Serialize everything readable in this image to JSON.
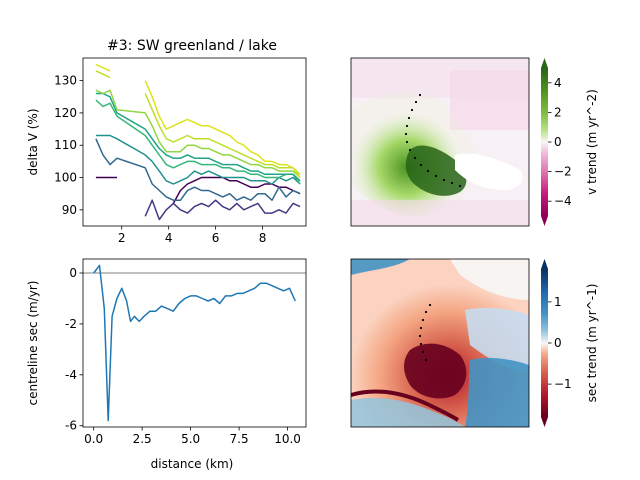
{
  "chart_data": [
    {
      "type": "line",
      "title": "#3: SW greenland / lake",
      "ylabel": "delta V (%)",
      "xlabel": "",
      "xlim": [
        0.35,
        9.85
      ],
      "ylim": [
        85,
        137
      ],
      "xticks": [
        2,
        4,
        6,
        8
      ],
      "yticks": [
        90,
        100,
        110,
        120,
        130
      ],
      "x": [
        0.9,
        1.2,
        1.5,
        1.8,
        3.0,
        3.3,
        3.6,
        3.9,
        4.2,
        4.5,
        4.8,
        5.1,
        5.4,
        5.7,
        6.0,
        6.3,
        6.6,
        6.9,
        7.2,
        7.5,
        7.8,
        8.1,
        8.4,
        8.7,
        9.0,
        9.3,
        9.6
      ],
      "series": [
        {
          "color": "#440154",
          "values": [
            100,
            100,
            100,
            100,
            null,
            null,
            null,
            null,
            92,
            96,
            98,
            99,
            100,
            100,
            100,
            100,
            99,
            99,
            98,
            97,
            97,
            98,
            98,
            97,
            97,
            96,
            95
          ]
        },
        {
          "color": "#443a83",
          "values": [
            null,
            null,
            null,
            null,
            88,
            93,
            87,
            90,
            92,
            90,
            89,
            91,
            92,
            91,
            93,
            91,
            90,
            92,
            90,
            91,
            92,
            89,
            89,
            90,
            89,
            92,
            91
          ]
        },
        {
          "color": "#31688e",
          "values": [
            112,
            107,
            104,
            106,
            103,
            98,
            96,
            94,
            93,
            93,
            96,
            97,
            96,
            96,
            95,
            94,
            95,
            93,
            94,
            93,
            95,
            95,
            93,
            97,
            94,
            96,
            95
          ]
        },
        {
          "color": "#21918c",
          "values": [
            113,
            113,
            113,
            112,
            107,
            105,
            102,
            99,
            98,
            99,
            100,
            102,
            101,
            102,
            101,
            100,
            100,
            100,
            100,
            99,
            99,
            99,
            98,
            100,
            99,
            100,
            98
          ]
        },
        {
          "color": "#35b779",
          "values": [
            124,
            122,
            123,
            119,
            113,
            110,
            107,
            104,
            103,
            104,
            105,
            105,
            104,
            104,
            104,
            103,
            103,
            102,
            102,
            101,
            101,
            100,
            100,
            100,
            101,
            101,
            98
          ]
        },
        {
          "color": "#20a486",
          "values": [
            126,
            126,
            125,
            120,
            115,
            112,
            109,
            107,
            106,
            106,
            107,
            106,
            106,
            106,
            105,
            104,
            104,
            104,
            103,
            102,
            102,
            101,
            101,
            101,
            101,
            101,
            99
          ]
        },
        {
          "color": "#90d743",
          "values": [
            127,
            126,
            127,
            121,
            120,
            116,
            111,
            108,
            108,
            108,
            110,
            110,
            109,
            109,
            108,
            107,
            107,
            106,
            105,
            104,
            104,
            103,
            103,
            102,
            102,
            102,
            100
          ]
        },
        {
          "color": "#bddf26",
          "values": [
            133,
            132,
            131,
            null,
            126,
            121,
            116,
            112,
            111,
            112,
            113,
            112,
            112,
            112,
            111,
            110,
            109,
            108,
            107,
            106,
            105,
            104,
            104,
            103,
            103,
            103,
            101
          ]
        },
        {
          "color": "#dde318",
          "values": [
            135,
            134,
            133,
            null,
            130,
            125,
            119,
            115,
            116,
            117,
            118,
            117,
            116,
            116,
            115,
            114,
            113,
            111,
            110,
            108,
            107,
            105,
            105,
            104,
            104,
            103,
            100
          ]
        }
      ]
    },
    {
      "type": "line",
      "title": "",
      "xlabel": "distance (km)",
      "ylabel": "centreline sec (m/yr)",
      "xlim": [
        -0.55,
        10.95
      ],
      "ylim": [
        -6.05,
        0.55
      ],
      "xticks": [
        0.0,
        2.5,
        5.0,
        7.5,
        10.0
      ],
      "xtick_labels": [
        "0.0",
        "2.5",
        "5.0",
        "7.5",
        "10.0"
      ],
      "yticks": [
        0,
        -2,
        -4,
        -6
      ],
      "zero_line": true,
      "series": [
        {
          "color": "#1f77b4",
          "x": [
            0.0,
            0.3,
            0.55,
            0.75,
            0.95,
            1.2,
            1.45,
            1.7,
            1.9,
            2.1,
            2.35,
            2.6,
            2.9,
            3.2,
            3.5,
            3.8,
            4.1,
            4.4,
            4.7,
            5.0,
            5.3,
            5.6,
            5.9,
            6.2,
            6.5,
            6.8,
            7.1,
            7.4,
            7.7,
            8.0,
            8.3,
            8.6,
            8.9,
            9.2,
            9.5,
            9.8,
            10.1,
            10.4
          ],
          "values": [
            0.0,
            0.3,
            -1.4,
            -5.8,
            -1.7,
            -1.0,
            -0.6,
            -1.1,
            -1.9,
            -1.7,
            -1.9,
            -1.7,
            -1.5,
            -1.5,
            -1.3,
            -1.4,
            -1.5,
            -1.2,
            -1.0,
            -0.9,
            -0.9,
            -1.0,
            -1.1,
            -1.0,
            -1.2,
            -0.9,
            -0.9,
            -0.8,
            -0.8,
            -0.7,
            -0.6,
            -0.4,
            -0.4,
            -0.5,
            -0.6,
            -0.7,
            -0.6,
            -1.1
          ]
        }
      ]
    },
    {
      "type": "heatmap",
      "title": "",
      "colorbar_label": "v trend (m yr^-2)",
      "colormap": "PiYG",
      "clim": [
        -5,
        5
      ],
      "colorbar_ticks": [
        4,
        2,
        0,
        -2,
        -4
      ],
      "centreline": "dotted black"
    },
    {
      "type": "heatmap",
      "title": "",
      "colorbar_label": "sec trend (m yr^-1)",
      "colormap": "RdBu",
      "clim": [
        -1.8,
        1.8
      ],
      "colorbar_ticks": [
        1,
        0,
        -1
      ],
      "centreline": "dotted black"
    }
  ]
}
